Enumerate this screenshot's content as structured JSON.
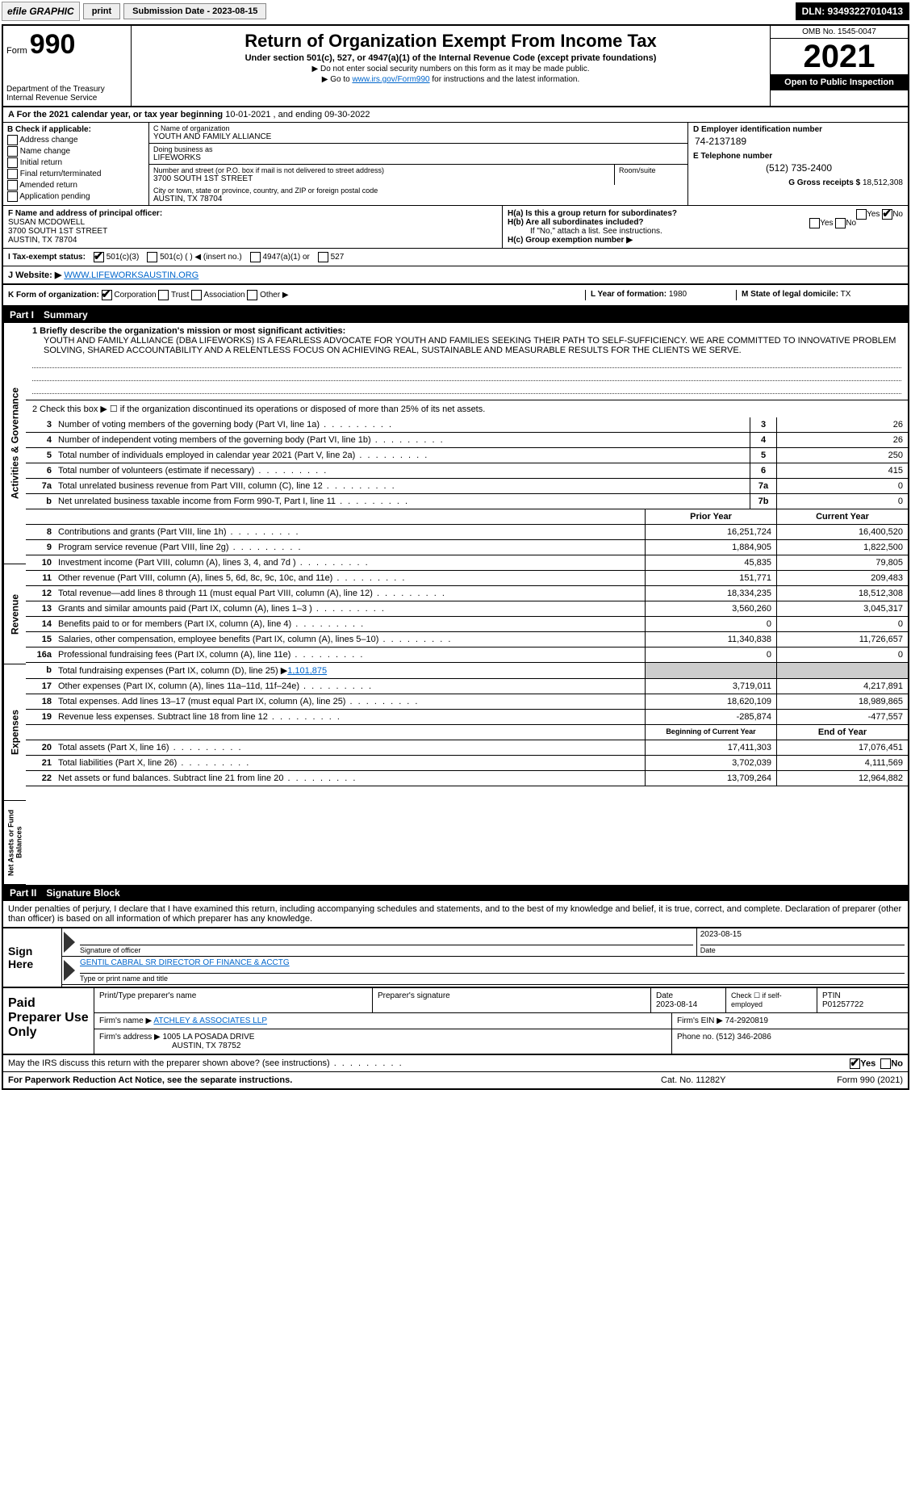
{
  "topbar": {
    "efile": "efile GRAPHIC",
    "print": "print",
    "submission": "Submission Date - 2023-08-15",
    "dln": "DLN: 93493227010413"
  },
  "header": {
    "form_prefix": "Form",
    "form_number": "990",
    "title": "Return of Organization Exempt From Income Tax",
    "subtitle": "Under section 501(c), 527, or 4947(a)(1) of the Internal Revenue Code (except private foundations)",
    "note1": "▶ Do not enter social security numbers on this form as it may be made public.",
    "note2_pre": "▶ Go to ",
    "note2_link": "www.irs.gov/Form990",
    "note2_post": " for instructions and the latest information.",
    "dept": "Department of the Treasury",
    "irs": "Internal Revenue Service",
    "omb": "OMB No. 1545-0047",
    "year": "2021",
    "open": "Open to Public Inspection"
  },
  "period": {
    "label_a": "A For the 2021 calendar year, or tax year beginning ",
    "begin": "10-01-2021",
    "mid": " , and ending ",
    "end": "09-30-2022"
  },
  "colB": {
    "title": "B Check if applicable:",
    "items": [
      "Address change",
      "Name change",
      "Initial return",
      "Final return/terminated",
      "Amended return",
      "Application pending"
    ]
  },
  "colC": {
    "name_lbl": "C Name of organization",
    "name": "YOUTH AND FAMILY ALLIANCE",
    "dba_lbl": "Doing business as",
    "dba": "LIFEWORKS",
    "addr_lbl": "Number and street (or P.O. box if mail is not delivered to street address)",
    "room_lbl": "Room/suite",
    "addr": "3700 SOUTH 1ST STREET",
    "city_lbl": "City or town, state or province, country, and ZIP or foreign postal code",
    "city": "AUSTIN, TX  78704"
  },
  "colD": {
    "ein_lbl": "D Employer identification number",
    "ein": "74-2137189",
    "phone_lbl": "E Telephone number",
    "phone": "(512) 735-2400",
    "gross_lbl": "G Gross receipts $",
    "gross": "18,512,308"
  },
  "rowF": {
    "lbl": "F Name and address of principal officer:",
    "name": "SUSAN MCDOWELL",
    "addr1": "3700 SOUTH 1ST STREET",
    "addr2": "AUSTIN, TX  78704"
  },
  "rowH": {
    "ha": "H(a)  Is this a group return for subordinates?",
    "ha_yes": "Yes",
    "ha_no": "No",
    "hb": "H(b)  Are all subordinates included?",
    "hb_yes": "Yes",
    "hb_no": "No",
    "hb_note": "If \"No,\" attach a list. See instructions.",
    "hc": "H(c)  Group exemption number ▶"
  },
  "statusRow": {
    "i_lbl": "I  Tax-exempt status:",
    "opt1": "501(c)(3)",
    "opt2": "501(c) (  ) ◀ (insert no.)",
    "opt3": "4947(a)(1) or",
    "opt4": "527"
  },
  "website": {
    "lbl": "J Website: ▶",
    "val": "WWW.LIFEWORKSAUSTIN.ORG"
  },
  "kRow": {
    "k_lbl": "K Form of organization:",
    "corp": "Corporation",
    "trust": "Trust",
    "assoc": "Association",
    "other": "Other ▶",
    "l_lbl": "L Year of formation:",
    "l_val": "1980",
    "m_lbl": "M State of legal domicile:",
    "m_val": "TX"
  },
  "part1": {
    "num": "Part I",
    "title": "Summary"
  },
  "summary": {
    "q1_lbl": "1 Briefly describe the organization's mission or most significant activities:",
    "mission": "YOUTH AND FAMILY ALLIANCE (DBA LIFEWORKS) IS A FEARLESS ADVOCATE FOR YOUTH AND FAMILIES SEEKING THEIR PATH TO SELF-SUFFICIENCY. WE ARE COMMITTED TO INNOVATIVE PROBLEM SOLVING, SHARED ACCOUNTABILITY AND A RELENTLESS FOCUS ON ACHIEVING REAL, SUSTAINABLE AND MEASURABLE RESULTS FOR THE CLIENTS WE SERVE.",
    "q2": "2  Check this box ▶ ☐ if the organization discontinued its operations or disposed of more than 25% of its net assets."
  },
  "lines_gov": [
    {
      "n": "3",
      "t": "Number of voting members of the governing body (Part VI, line 1a)",
      "box": "3",
      "v": "26"
    },
    {
      "n": "4",
      "t": "Number of independent voting members of the governing body (Part VI, line 1b)",
      "box": "4",
      "v": "26"
    },
    {
      "n": "5",
      "t": "Total number of individuals employed in calendar year 2021 (Part V, line 2a)",
      "box": "5",
      "v": "250"
    },
    {
      "n": "6",
      "t": "Total number of volunteers (estimate if necessary)",
      "box": "6",
      "v": "415"
    },
    {
      "n": "7a",
      "t": "Total unrelated business revenue from Part VIII, column (C), line 12",
      "box": "7a",
      "v": "0"
    },
    {
      "n": "b",
      "t": "Net unrelated business taxable income from Form 990-T, Part I, line 11",
      "box": "7b",
      "v": "0"
    }
  ],
  "two_col_hdr": {
    "prior": "Prior Year",
    "current": "Current Year"
  },
  "revenue": [
    {
      "n": "8",
      "t": "Contributions and grants (Part VIII, line 1h)",
      "p": "16,251,724",
      "c": "16,400,520"
    },
    {
      "n": "9",
      "t": "Program service revenue (Part VIII, line 2g)",
      "p": "1,884,905",
      "c": "1,822,500"
    },
    {
      "n": "10",
      "t": "Investment income (Part VIII, column (A), lines 3, 4, and 7d )",
      "p": "45,835",
      "c": "79,805"
    },
    {
      "n": "11",
      "t": "Other revenue (Part VIII, column (A), lines 5, 6d, 8c, 9c, 10c, and 11e)",
      "p": "151,771",
      "c": "209,483"
    },
    {
      "n": "12",
      "t": "Total revenue—add lines 8 through 11 (must equal Part VIII, column (A), line 12)",
      "p": "18,334,235",
      "c": "18,512,308"
    }
  ],
  "expenses": [
    {
      "n": "13",
      "t": "Grants and similar amounts paid (Part IX, column (A), lines 1–3 )",
      "p": "3,560,260",
      "c": "3,045,317"
    },
    {
      "n": "14",
      "t": "Benefits paid to or for members (Part IX, column (A), line 4)",
      "p": "0",
      "c": "0"
    },
    {
      "n": "15",
      "t": "Salaries, other compensation, employee benefits (Part IX, column (A), lines 5–10)",
      "p": "11,340,838",
      "c": "11,726,657"
    },
    {
      "n": "16a",
      "t": "Professional fundraising fees (Part IX, column (A), line 11e)",
      "p": "0",
      "c": "0"
    }
  ],
  "exp_b": {
    "n": "b",
    "t": "Total fundraising expenses (Part IX, column (D), line 25) ▶",
    "v": "1,101,875"
  },
  "expenses2": [
    {
      "n": "17",
      "t": "Other expenses (Part IX, column (A), lines 11a–11d, 11f–24e)",
      "p": "3,719,011",
      "c": "4,217,891"
    },
    {
      "n": "18",
      "t": "Total expenses. Add lines 13–17 (must equal Part IX, column (A), line 25)",
      "p": "18,620,109",
      "c": "18,989,865"
    },
    {
      "n": "19",
      "t": "Revenue less expenses. Subtract line 18 from line 12",
      "p": "-285,874",
      "c": "-477,557"
    }
  ],
  "net_hdr": {
    "begin": "Beginning of Current Year",
    "end": "End of Year"
  },
  "net": [
    {
      "n": "20",
      "t": "Total assets (Part X, line 16)",
      "p": "17,411,303",
      "c": "17,076,451"
    },
    {
      "n": "21",
      "t": "Total liabilities (Part X, line 26)",
      "p": "3,702,039",
      "c": "4,111,569"
    },
    {
      "n": "22",
      "t": "Net assets or fund balances. Subtract line 21 from line 20",
      "p": "13,709,264",
      "c": "12,964,882"
    }
  ],
  "part2": {
    "num": "Part II",
    "title": "Signature Block"
  },
  "penalty": "Under penalties of perjury, I declare that I have examined this return, including accompanying schedules and statements, and to the best of my knowledge and belief, it is true, correct, and complete. Declaration of preparer (other than officer) is based on all information of which preparer has any knowledge.",
  "sign": {
    "here": "Sign Here",
    "sig_lbl": "Signature of officer",
    "date_lbl": "Date",
    "date": "2023-08-15",
    "name": "GENTIL CABRAL  SR DIRECTOR OF FINANCE & ACCTG",
    "name_lbl": "Type or print name and title"
  },
  "paid": {
    "lbl": "Paid Preparer Use Only",
    "h1": "Print/Type preparer's name",
    "h2": "Preparer's signature",
    "h3": "Date",
    "h3v": "2023-08-14",
    "h4": "Check ☐ if self-employed",
    "h5": "PTIN",
    "h5v": "P01257722",
    "firm_lbl": "Firm's name    ▶",
    "firm": "ATCHLEY & ASSOCIATES LLP",
    "ein_lbl": "Firm's EIN ▶",
    "ein": "74-2920819",
    "addr_lbl": "Firm's address ▶",
    "addr1": "1005 LA POSADA DRIVE",
    "addr2": "AUSTIN, TX  78752",
    "phone_lbl": "Phone no.",
    "phone": "(512) 346-2086"
  },
  "discuss": {
    "q": "May the IRS discuss this return with the preparer shown above? (see instructions)",
    "yes": "Yes",
    "no": "No"
  },
  "footer": {
    "left": "For Paperwork Reduction Act Notice, see the separate instructions.",
    "mid": "Cat. No. 11282Y",
    "right": "Form 990 (2021)"
  },
  "sidetabs": {
    "gov": "Activities & Governance",
    "rev": "Revenue",
    "exp": "Expenses",
    "net": "Net Assets or Fund Balances"
  }
}
